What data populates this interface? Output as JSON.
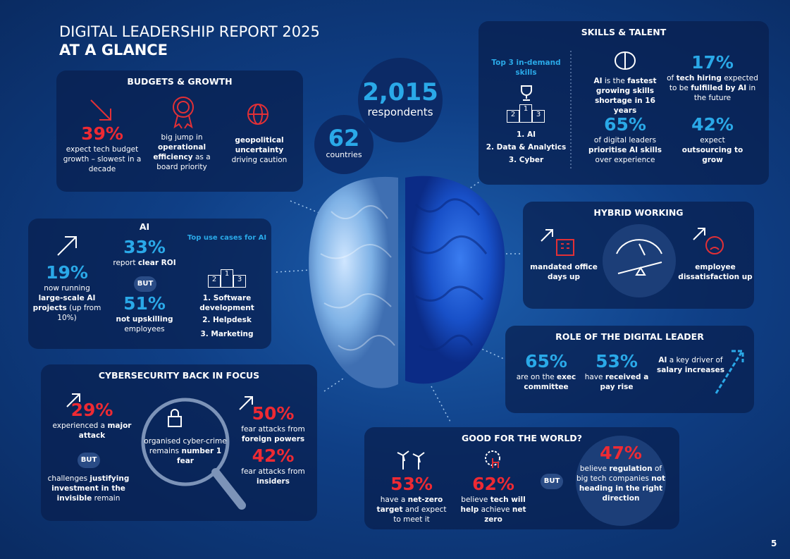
{
  "header": {
    "title": "DIGITAL LEADERSHIP REPORT 2025",
    "subtitle": "AT A GLANCE"
  },
  "center": {
    "respondents": {
      "value": "2,015",
      "label": "respondents"
    },
    "countries": {
      "value": "62",
      "label": "countries"
    }
  },
  "budgets": {
    "title": "BUDGETS & GROWTH",
    "items": [
      {
        "stat": "39%",
        "text": [
          "expect tech budget growth – slowest in a decade"
        ]
      },
      {
        "text": [
          "big jump in",
          "operational efficiency",
          "as a board priority"
        ]
      },
      {
        "text": [
          "geopolitical uncertainty",
          "driving caution"
        ]
      }
    ]
  },
  "ai": {
    "title": "AI",
    "projects": {
      "stat": "19%",
      "text": [
        "now running",
        "large-scale AI projects",
        "(up from 10%)"
      ]
    },
    "roi": {
      "stat": "33%",
      "text": [
        "report",
        "clear ROI"
      ]
    },
    "but": "BUT",
    "upskilling": {
      "stat": "51%",
      "text": [
        "not upskilling",
        "employees"
      ]
    },
    "use_cases": {
      "title": "Top use cases for AI",
      "podium": [
        "2",
        "1",
        "3"
      ],
      "list": [
        "1. Software development",
        "2. Helpdesk",
        "3. Marketing"
      ]
    }
  },
  "cyber": {
    "title": "CYBERSECURITY BACK IN FOCUS",
    "attack": {
      "stat": "29%",
      "text": [
        "experienced a",
        "major attack"
      ]
    },
    "but": "BUT",
    "challenge": [
      "challenges",
      "justifying investment in the invisible",
      "remain"
    ],
    "fear": [
      "organised cyber-crime remains",
      "number 1 fear"
    ],
    "foreign": {
      "stat": "50%",
      "text": [
        "fear attacks from",
        "foreign powers"
      ]
    },
    "insiders": {
      "stat": "42%",
      "text": [
        "fear attacks from",
        "insiders"
      ]
    }
  },
  "skills": {
    "title": "SKILLS & TALENT",
    "top": {
      "title": "Top 3 in-demand skills",
      "podium": [
        "2",
        "1",
        "3"
      ],
      "list": [
        "1. AI",
        "2. Data & Analytics",
        "3. Cyber"
      ]
    },
    "shortage": [
      "AI",
      "is the",
      "fastest growing skills shortage in 16 years"
    ],
    "hiring": {
      "stat": "17%",
      "text": [
        "of",
        "tech hiring",
        "expected to be",
        "fulfilled by AI",
        "in the future"
      ]
    },
    "prioritise": {
      "stat": "65%",
      "text": [
        "of digital leaders",
        "prioritise AI skills",
        "over experience"
      ]
    },
    "outsourcing": {
      "stat": "42%",
      "text": [
        "expect",
        "outsourcing to grow"
      ]
    }
  },
  "hybrid": {
    "title": "HYBRID WORKING",
    "items": [
      "mandated office days up",
      "employee dissatisfaction up"
    ]
  },
  "role": {
    "title": "ROLE OF THE DIGITAL LEADER",
    "items": [
      {
        "stat": "65%",
        "text": [
          "are on the",
          "exec committee"
        ]
      },
      {
        "stat": "53%",
        "text": [
          "have",
          "received a pay rise"
        ]
      },
      {
        "text": [
          "AI",
          "a key driver of",
          "salary increases"
        ]
      }
    ]
  },
  "world": {
    "title": "GOOD FOR THE WORLD?",
    "net_zero": {
      "stat": "53%",
      "text": [
        "have a",
        "net-zero target",
        "and expect to meet it"
      ]
    },
    "tech": {
      "stat": "62%",
      "text": [
        "believe",
        "tech will help",
        "achieve",
        "net zero"
      ]
    },
    "but": "BUT",
    "regulation": {
      "stat": "47%",
      "text": [
        "believe",
        "regulation",
        "of big tech companies",
        "not heading in the right direction"
      ]
    }
  },
  "page": "5"
}
